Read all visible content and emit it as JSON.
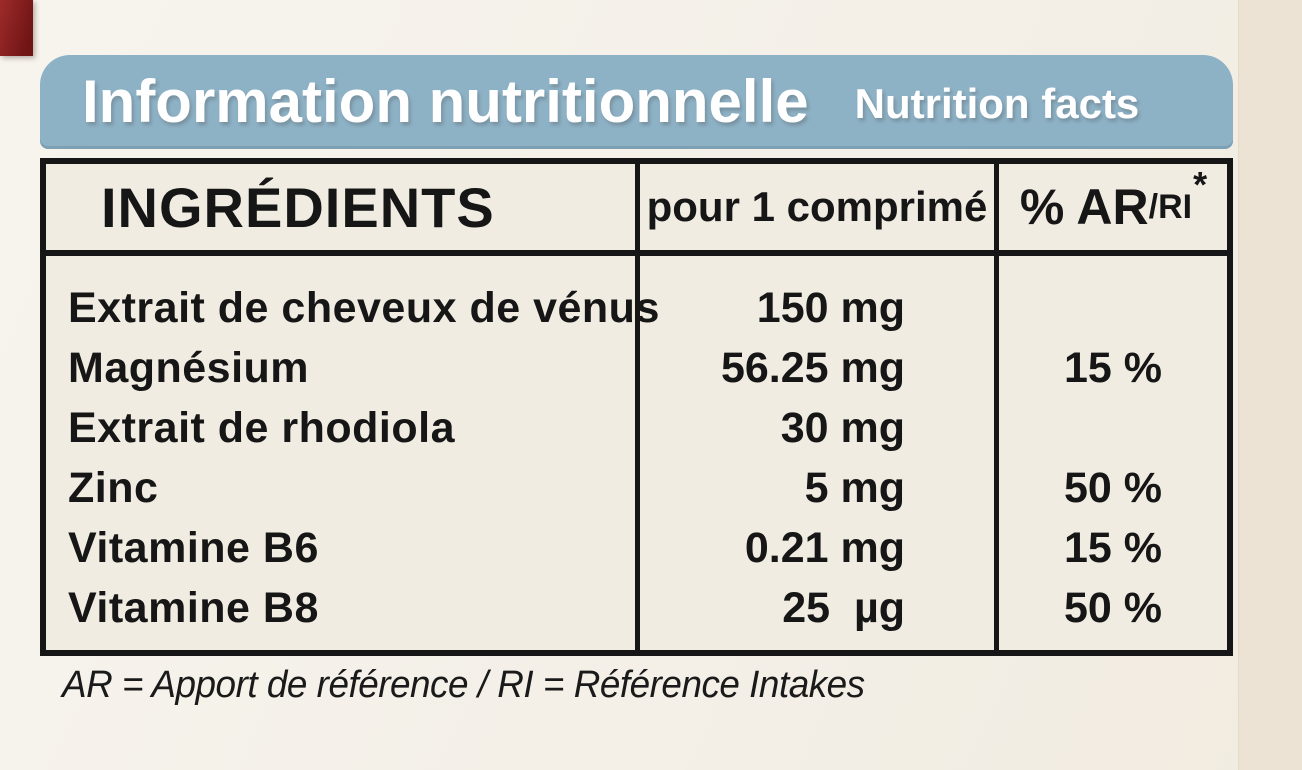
{
  "label": {
    "bg_color": "#f4f0e8",
    "right_band_color": "#ece3d5",
    "corner_mark_color": "#8a2020",
    "header": {
      "title_fr": "Information nutritionnelle",
      "title_en": "Nutrition facts",
      "bar_color": "#8db1c5",
      "text_color": "#ffffff"
    },
    "table": {
      "border_color": "#161616",
      "cell_bg": "#f1ece2",
      "col1_header": "INGRÉDIENTS",
      "col2_header": "pour 1 comprimé",
      "col3_header_main": "% AR",
      "col3_header_sub": "/RI",
      "col3_header_sup": "*",
      "rows": [
        {
          "name": "Extrait de cheveux de vénus",
          "amount": "150 mg",
          "ari": ""
        },
        {
          "name": "Magnésium",
          "amount": "56.25 mg",
          "ari": "15 %"
        },
        {
          "name": "Extrait de rhodiola",
          "amount": "30 mg",
          "ari": ""
        },
        {
          "name": "Zinc",
          "amount": "5 mg",
          "ari": "50 %"
        },
        {
          "name": "Vitamine B6",
          "amount": "0.21 mg",
          "ari": "15 %"
        },
        {
          "name": "Vitamine B8",
          "amount": "25  µg",
          "ari": "50 %"
        }
      ]
    },
    "footnote": "AR = Apport de référence / RI = Référence Intakes"
  }
}
